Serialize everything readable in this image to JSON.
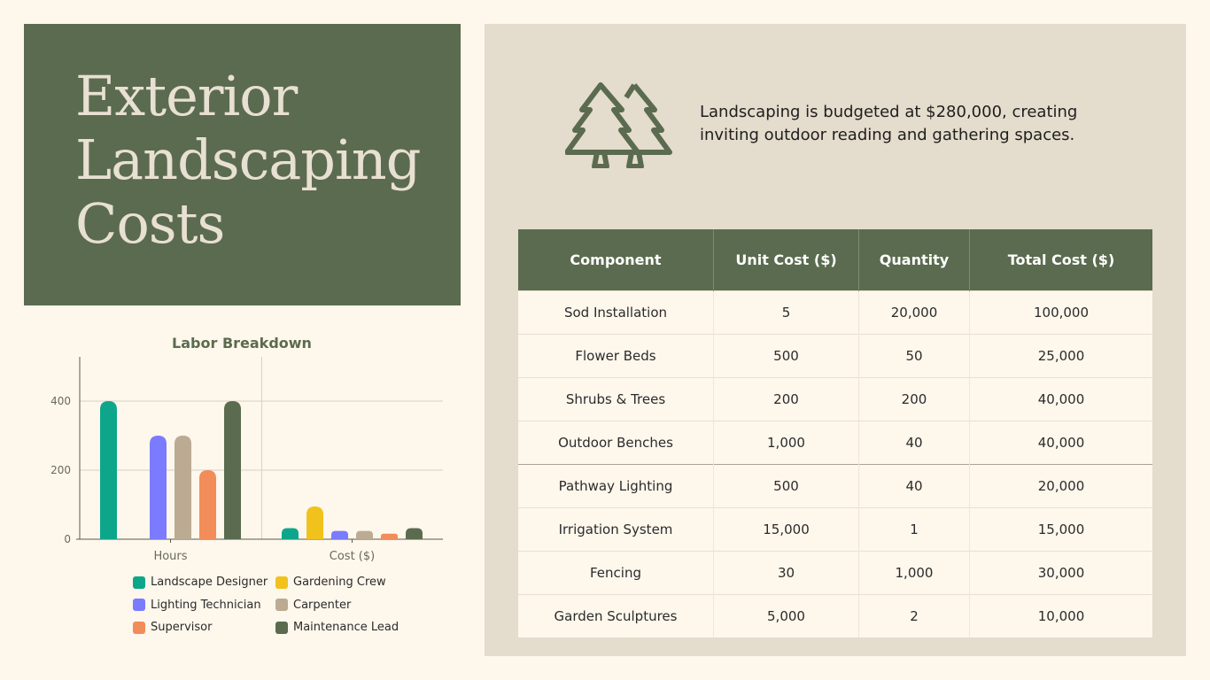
{
  "title": {
    "lines": [
      "Exterior",
      "Landscaping",
      "Costs"
    ]
  },
  "blurb": "Landscaping is budgeted at $280,000, creating inviting outdoor reading and gathering spaces.",
  "icon": "pine-trees-icon",
  "colors": {
    "primary": "#5b6b4f",
    "panel": "#e4dccc",
    "background": "#fdf7ec"
  },
  "table": {
    "headers": [
      "Component",
      "Unit Cost ($)",
      "Quantity",
      "Total Cost ($)"
    ],
    "rows": [
      [
        "Sod Installation",
        "5",
        "20,000",
        "100,000"
      ],
      [
        "Flower Beds",
        "500",
        "50",
        "25,000"
      ],
      [
        "Shrubs & Trees",
        "200",
        "200",
        "40,000"
      ],
      [
        "Outdoor Benches",
        "1,000",
        "40",
        "40,000"
      ],
      [
        "Pathway Lighting",
        "500",
        "40",
        "20,000"
      ],
      [
        "Irrigation System",
        "15,000",
        "1",
        "15,000"
      ],
      [
        "Fencing",
        "30",
        "1,000",
        "30,000"
      ],
      [
        "Garden Sculptures",
        "5,000",
        "2",
        "10,000"
      ]
    ]
  },
  "chart_data": {
    "type": "bar",
    "title": "Labor Breakdown",
    "categories": [
      "Hours",
      "Cost ($)"
    ],
    "xlabel": "",
    "ylabel": "",
    "ylim": [
      0,
      525
    ],
    "yticks": [
      0,
      200,
      400
    ],
    "grid": true,
    "legend_position": "bottom",
    "series": [
      {
        "name": "Landscape Designer",
        "color": "#0ea68a",
        "values": [
          400,
          32
        ]
      },
      {
        "name": "Gardening Crew",
        "color": "#f1c21b",
        "values": [
          0,
          95
        ]
      },
      {
        "name": "Lighting Technician",
        "color": "#7b7bff",
        "values": [
          300,
          24
        ]
      },
      {
        "name": "Carpenter",
        "color": "#bbab92",
        "values": [
          300,
          24
        ]
      },
      {
        "name": "Supervisor",
        "color": "#f28c58",
        "values": [
          200,
          16
        ]
      },
      {
        "name": "Maintenance Lead",
        "color": "#5b6b4f",
        "values": [
          400,
          32
        ]
      }
    ]
  }
}
